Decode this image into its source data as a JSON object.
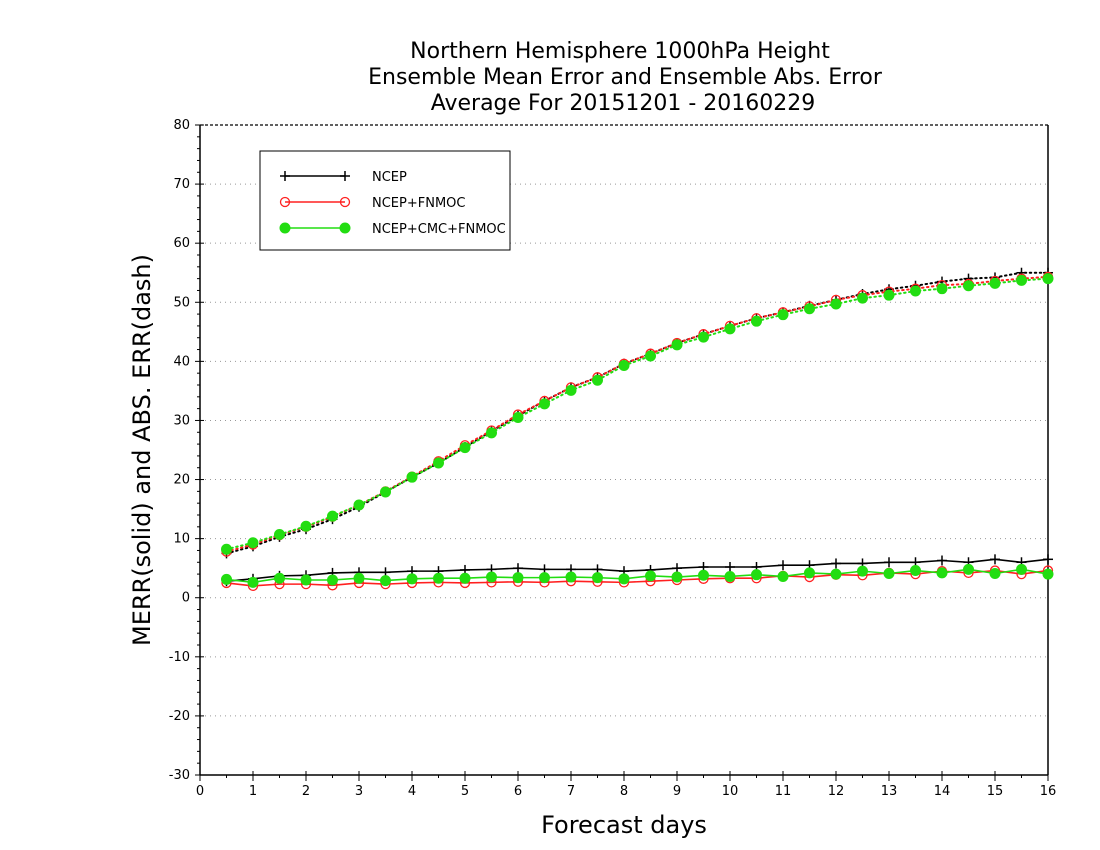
{
  "chart_data": {
    "type": "line",
    "title": [
      "Northern Hemisphere 1000hPa Height",
      "Ensemble Mean Error and Ensemble Abs. Error",
      "Average For 20151201 - 20160229"
    ],
    "xlabel": "Forecast days",
    "ylabel": "MERR(solid) and ABS. ERR(dash)",
    "xlim": [
      0,
      16
    ],
    "ylim": [
      -30,
      80
    ],
    "xticks": [
      0,
      1,
      2,
      3,
      4,
      5,
      6,
      7,
      8,
      9,
      10,
      11,
      12,
      13,
      14,
      15,
      16
    ],
    "yticks": [
      -30,
      -20,
      -10,
      0,
      10,
      20,
      30,
      40,
      50,
      60,
      70,
      80
    ],
    "grid": "horizontal dotted",
    "legend_position": "top-left",
    "x": [
      0.5,
      1,
      1.5,
      2,
      2.5,
      3,
      3.5,
      4,
      4.5,
      5,
      5.5,
      6,
      6.5,
      7,
      7.5,
      8,
      8.5,
      9,
      9.5,
      10,
      10.5,
      11,
      11.5,
      12,
      12.5,
      13,
      13.5,
      14,
      14.5,
      15,
      15.5,
      16
    ],
    "series": [
      {
        "name": "NCEP",
        "color": "#000000",
        "marker": "plus",
        "merr": [
          2.8,
          3.2,
          3.7,
          3.8,
          4.2,
          4.3,
          4.3,
          4.5,
          4.5,
          4.7,
          4.8,
          5.0,
          4.8,
          4.8,
          4.8,
          4.5,
          4.7,
          5.0,
          5.2,
          5.2,
          5.2,
          5.5,
          5.5,
          5.8,
          5.8,
          6.0,
          6.0,
          6.3,
          6.0,
          6.5,
          6.0,
          6.5
        ],
        "abs_err": [
          7.5,
          8.7,
          10.3,
          11.6,
          13.3,
          15.4,
          17.9,
          20.4,
          22.8,
          25.5,
          28.2,
          30.8,
          33.3,
          35.6,
          37.3,
          39.6,
          41.3,
          43.1,
          44.6,
          46.0,
          47.3,
          48.3,
          49.4,
          50.4,
          51.4,
          52.2,
          52.8,
          53.5,
          54.0,
          54.2,
          55.0,
          55.0
        ]
      },
      {
        "name": "NCEP+FNMOC",
        "color": "#ff2020",
        "marker": "open-circle",
        "merr": [
          2.5,
          2.0,
          2.3,
          2.3,
          2.1,
          2.5,
          2.3,
          2.5,
          2.6,
          2.5,
          2.6,
          2.7,
          2.6,
          2.8,
          2.7,
          2.6,
          2.8,
          3.0,
          3.2,
          3.3,
          3.3,
          3.7,
          3.5,
          3.9,
          3.8,
          4.2,
          4.0,
          4.5,
          4.2,
          4.6,
          4.0,
          4.6
        ],
        "abs_err": [
          7.8,
          9.0,
          10.6,
          12.0,
          13.7,
          15.7,
          18.0,
          20.5,
          23.1,
          25.8,
          28.3,
          31.0,
          33.3,
          35.6,
          37.3,
          39.6,
          41.3,
          43.1,
          44.6,
          46.0,
          47.3,
          48.3,
          49.3,
          50.4,
          51.2,
          51.8,
          52.3,
          52.9,
          53.1,
          53.6,
          54.0,
          54.3
        ]
      },
      {
        "name": "NCEP+CMC+FNMOC",
        "color": "#22dd11",
        "marker": "filled-circle",
        "merr": [
          3.1,
          2.6,
          3.3,
          3.0,
          3.0,
          3.3,
          2.9,
          3.2,
          3.3,
          3.3,
          3.5,
          3.4,
          3.4,
          3.5,
          3.4,
          3.2,
          3.7,
          3.5,
          3.8,
          3.6,
          3.9,
          3.6,
          4.2,
          4.0,
          4.5,
          4.1,
          4.6,
          4.2,
          4.8,
          4.1,
          4.8,
          4.0
        ],
        "abs_err": [
          8.2,
          9.3,
          10.7,
          12.1,
          13.8,
          15.7,
          17.9,
          20.4,
          22.8,
          25.4,
          27.9,
          30.5,
          32.8,
          35.1,
          36.8,
          39.3,
          40.9,
          42.8,
          44.1,
          45.5,
          46.8,
          47.9,
          48.9,
          49.7,
          50.7,
          51.2,
          51.9,
          52.3,
          52.8,
          53.2,
          53.7,
          54.0
        ]
      }
    ]
  }
}
